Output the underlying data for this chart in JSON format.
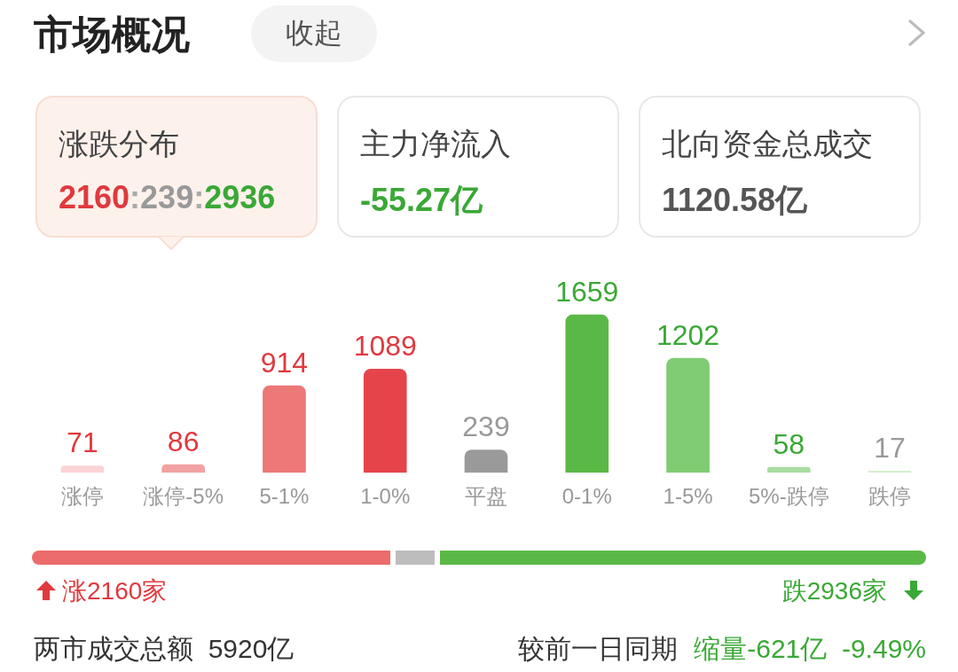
{
  "chart_data": {
    "type": "bar",
    "title": "市场概况",
    "categories": [
      "涨停",
      "涨停-5%",
      "5-1%",
      "1-0%",
      "平盘",
      "0-1%",
      "1-5%",
      "5%-跌停",
      "跌停"
    ],
    "values": [
      71,
      86,
      914,
      1089,
      239,
      1659,
      1202,
      58,
      17
    ],
    "colors": [
      "#fad4d4",
      "#f2a2a2",
      "#ec7878",
      "#e5444b",
      "#9a9a9a",
      "#5ab946",
      "#80cc72",
      "#a9dca0",
      "#d5eed0"
    ],
    "data_labels": true,
    "grid": false,
    "legend": false,
    "annotations": [
      "收起",
      "涨跌分布",
      "2160:239:2936",
      "主力净流入",
      "-55.27亿",
      "北向资金总成交",
      "1120.58亿",
      "涨2160家",
      "跌2936家",
      "两市成交总额  5920亿",
      "较前一日同期",
      "缩量-621亿  -9.49%"
    ]
  }
}
